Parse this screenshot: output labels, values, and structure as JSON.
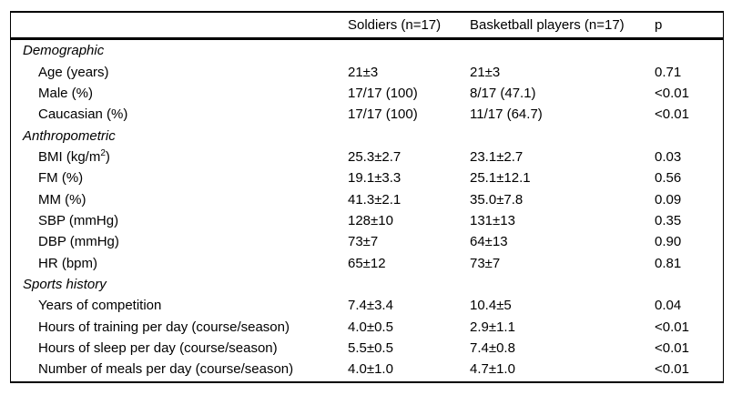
{
  "table": {
    "columns": [
      "",
      "Soldiers (n=17)",
      "Basketball players (n=17)",
      "p"
    ],
    "sections": [
      {
        "title": "Demographic",
        "rows": [
          {
            "label": "Age (years)",
            "soldiers": "21±3",
            "basketball": "21±3",
            "p": "0.71"
          },
          {
            "label": "Male (%)",
            "soldiers": "17/17 (100)",
            "basketball": "8/17 (47.1)",
            "p": "<0.01"
          },
          {
            "label": "Caucasian (%)",
            "soldiers": "17/17 (100)",
            "basketball": "11/17 (64.7)",
            "p": "<0.01"
          }
        ]
      },
      {
        "title": "Anthropometric",
        "rows": [
          {
            "label": "BMI (kg/m²)",
            "soldiers": "25.3±2.7",
            "basketball": "23.1±2.7",
            "p": "0.03"
          },
          {
            "label": "FM (%)",
            "soldiers": "19.1±3.3",
            "basketball": "25.1±12.1",
            "p": "0.56"
          },
          {
            "label": "MM (%)",
            "soldiers": "41.3±2.1",
            "basketball": "35.0±7.8",
            "p": "0.09"
          },
          {
            "label": "SBP (mmHg)",
            "soldiers": "128±10",
            "basketball": "131±13",
            "p": "0.35"
          },
          {
            "label": "DBP (mmHg)",
            "soldiers": "73±7",
            "basketball": "64±13",
            "p": "0.90"
          },
          {
            "label": "HR (bpm)",
            "soldiers": "65±12",
            "basketball": "73±7",
            "p": "0.81"
          }
        ]
      },
      {
        "title": "Sports history",
        "rows": [
          {
            "label": "Years of competition",
            "soldiers": "7.4±3.4",
            "basketball": "10.4±5",
            "p": "0.04"
          },
          {
            "label": "Hours of training per day (course/season)",
            "soldiers": "4.0±0.5",
            "basketball": "2.9±1.1",
            "p": "<0.01"
          },
          {
            "label": "Hours of sleep per day (course/season)",
            "soldiers": "5.5±0.5",
            "basketball": "7.4±0.8",
            "p": "<0.01"
          },
          {
            "label": "Number of meals per day (course/season)",
            "soldiers": "4.0±1.0",
            "basketball": "4.7±1.0",
            "p": "<0.01"
          }
        ]
      }
    ]
  }
}
